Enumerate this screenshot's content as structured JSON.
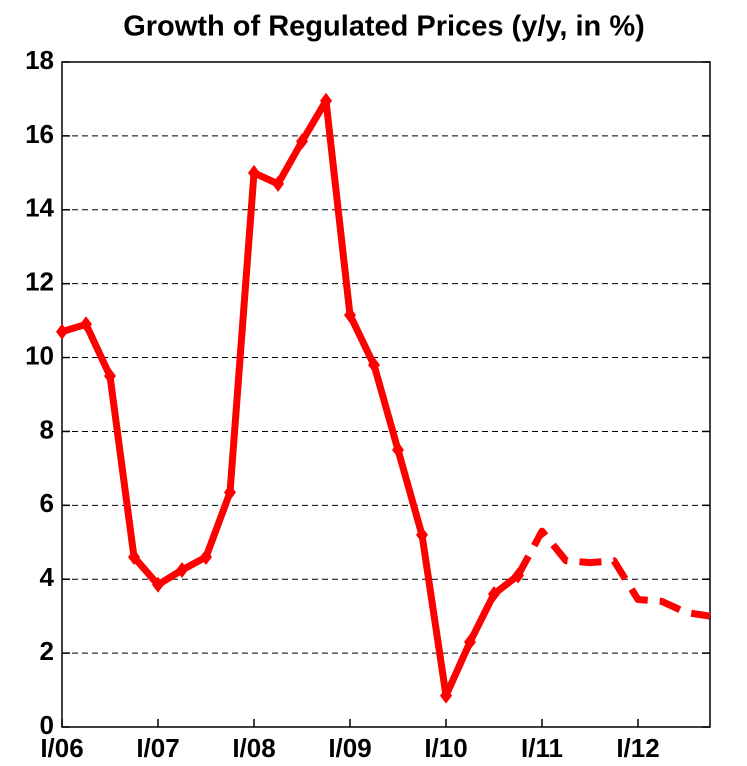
{
  "chart_data": {
    "type": "line",
    "title": "Growth of Regulated Prices (y/y, in %)",
    "categories": [
      "I/06",
      null,
      null,
      null,
      "I/07",
      null,
      null,
      null,
      "I/08",
      null,
      null,
      null,
      "I/09",
      null,
      null,
      null,
      "I/10",
      null,
      null,
      null,
      "I/11",
      null,
      null,
      null,
      "I/12",
      null,
      null,
      null
    ],
    "series": [
      {
        "color": "#ff0000",
        "style": "solid",
        "markers": true,
        "values": [
          10.7,
          10.9,
          9.5,
          4.6,
          3.85,
          4.25,
          4.6,
          6.35,
          15.0,
          14.7,
          15.85,
          16.95,
          11.15,
          9.8,
          7.5,
          5.2,
          0.85,
          2.3,
          3.6,
          4.1,
          null,
          null,
          null,
          null,
          null,
          null,
          null,
          null
        ]
      },
      {
        "color": "#ff0000",
        "style": "dashed",
        "markers": false,
        "values": [
          null,
          null,
          null,
          null,
          null,
          null,
          null,
          null,
          null,
          null,
          null,
          null,
          null,
          null,
          null,
          null,
          null,
          null,
          null,
          4.1,
          5.3,
          4.5,
          4.45,
          4.5,
          3.45,
          3.4,
          3.1,
          3.0
        ]
      }
    ],
    "ylim": [
      0,
      18
    ],
    "yticks": [
      0,
      2,
      4,
      6,
      8,
      10,
      12,
      14,
      16,
      18
    ],
    "grid": true
  }
}
